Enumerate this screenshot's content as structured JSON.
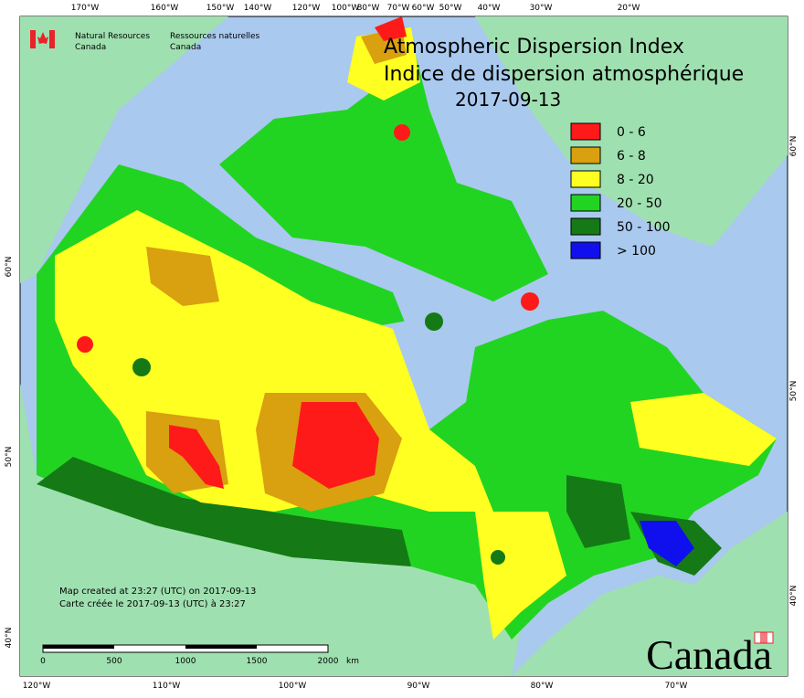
{
  "header": {
    "title_en": "Atmospheric Dispersion Index",
    "title_fr": "Indice de dispersion atmosphérique",
    "date": "2017-09-13"
  },
  "agency": {
    "name_en": "Natural Resources",
    "country_en": "Canada",
    "name_fr": "Ressources naturelles",
    "country_fr": "Canada"
  },
  "legend": [
    {
      "label": "0 - 6",
      "color": "#ff1a1a"
    },
    {
      "label": "6 - 8",
      "color": "#d9a010"
    },
    {
      "label": "8 - 20",
      "color": "#ffff22"
    },
    {
      "label": "20 - 50",
      "color": "#22d422"
    },
    {
      "label": "50 - 100",
      "color": "#157a15"
    },
    {
      "label": "> 100",
      "color": "#1010ee"
    }
  ],
  "top_longitudes": [
    "170°W",
    "160°W",
    "150°W",
    "140°W",
    "120°W",
    "100°W",
    "80°W",
    "70°W",
    "60°W",
    "50°W",
    "40°W",
    "30°W",
    "20°W"
  ],
  "bottom_longitudes": [
    "120°W",
    "110°W",
    "100°W",
    "90°W",
    "80°W",
    "70°W"
  ],
  "left_latitudes": [
    "60°N",
    "50°N",
    "40°N"
  ],
  "right_latitudes": [
    "60°N",
    "50°N",
    "40°N"
  ],
  "credits": {
    "line_en": "Map created at 23:27 (UTC) on 2017-09-13",
    "line_fr": "Carte créée le 2017-09-13 (UTC) à 23:27"
  },
  "scale_bar": {
    "ticks": [
      0,
      500,
      1000,
      1500,
      2000
    ],
    "unit": "km"
  },
  "wordmark": "Canada"
}
